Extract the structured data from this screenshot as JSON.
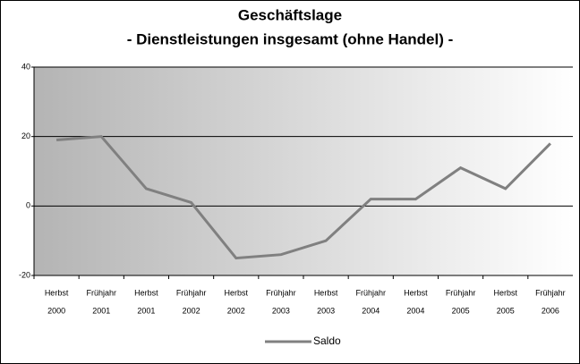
{
  "chart_data": {
    "type": "line",
    "title": [
      "Geschäftslage",
      "- Dienstleistungen insgesamt (ohne Handel) -"
    ],
    "categories": [
      [
        "Herbst",
        "2000"
      ],
      [
        "Frühjahr",
        "2001"
      ],
      [
        "Herbst",
        "2001"
      ],
      [
        "Frühjahr",
        "2002"
      ],
      [
        "Herbst",
        "2002"
      ],
      [
        "Frühjahr",
        "2003"
      ],
      [
        "Herbst",
        "2003"
      ],
      [
        "Frühjahr",
        "2004"
      ],
      [
        "Herbst",
        "2004"
      ],
      [
        "Frühjahr",
        "2005"
      ],
      [
        "Herbst",
        "2005"
      ],
      [
        "Frühjahr",
        "2006"
      ]
    ],
    "series": [
      {
        "name": "Saldo",
        "color": "#808080",
        "values": [
          19,
          20,
          5,
          1,
          -15,
          -14,
          -10,
          2,
          2,
          11,
          5,
          18
        ]
      }
    ],
    "ylim": [
      -20,
      40
    ],
    "yticks": [
      -20,
      0,
      20,
      40
    ],
    "grid": true,
    "legend": "bottom"
  }
}
